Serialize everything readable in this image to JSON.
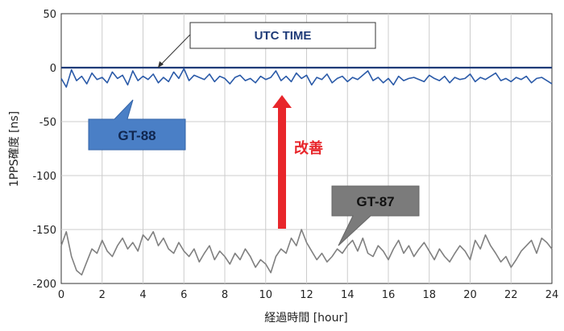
{
  "chart_data": {
    "type": "line",
    "xlabel": "経過時間 [hour]",
    "ylabel": "1PPS確度 [ns]",
    "xlim": [
      0,
      24
    ],
    "ylim": [
      -200,
      50
    ],
    "x_ticks": [
      0,
      2,
      4,
      6,
      8,
      10,
      12,
      14,
      16,
      18,
      20,
      22,
      24
    ],
    "y_ticks": [
      50,
      0,
      -50,
      -100,
      -150,
      -200
    ],
    "grid": true,
    "series": [
      {
        "name": "UTC TIME",
        "color": "#1f3b78",
        "x": [
          0,
          24
        ],
        "y": [
          0,
          0
        ]
      },
      {
        "name": "GT-88",
        "color": "#2a5aa8",
        "x": [
          0,
          0.25,
          0.5,
          0.75,
          1,
          1.25,
          1.5,
          1.75,
          2,
          2.25,
          2.5,
          2.75,
          3,
          3.25,
          3.5,
          3.75,
          4,
          4.25,
          4.5,
          4.75,
          5,
          5.25,
          5.5,
          5.75,
          6,
          6.25,
          6.5,
          6.75,
          7,
          7.25,
          7.5,
          7.75,
          8,
          8.25,
          8.5,
          8.75,
          9,
          9.25,
          9.5,
          9.75,
          10,
          10.25,
          10.5,
          10.75,
          11,
          11.25,
          11.5,
          11.75,
          12,
          12.25,
          12.5,
          12.75,
          13,
          13.25,
          13.5,
          13.75,
          14,
          14.25,
          14.5,
          14.75,
          15,
          15.25,
          15.5,
          15.75,
          16,
          16.25,
          16.5,
          16.75,
          17,
          17.25,
          17.5,
          17.75,
          18,
          18.25,
          18.5,
          18.75,
          19,
          19.25,
          19.5,
          19.75,
          20,
          20.25,
          20.5,
          20.75,
          21,
          21.25,
          21.5,
          21.75,
          22,
          22.25,
          22.5,
          22.75,
          23,
          23.25,
          23.5,
          23.75,
          24
        ],
        "y": [
          -10,
          -18,
          -2,
          -12,
          -8,
          -15,
          -5,
          -11,
          -9,
          -14,
          -4,
          -10,
          -7,
          -16,
          -3,
          -12,
          -8,
          -11,
          -6,
          -14,
          -9,
          -13,
          -4,
          -10,
          -1,
          -12,
          -7,
          -9,
          -11,
          -6,
          -13,
          -8,
          -10,
          -15,
          -9,
          -7,
          -12,
          -10,
          -14,
          -8,
          -11,
          -9,
          -3,
          -12,
          -8,
          -13,
          -5,
          -10,
          -7,
          -16,
          -9,
          -11,
          -6,
          -14,
          -10,
          -8,
          -13,
          -9,
          -11,
          -7,
          -3,
          -12,
          -9,
          -14,
          -10,
          -16,
          -8,
          -12,
          -10,
          -9,
          -11,
          -13,
          -7,
          -10,
          -12,
          -8,
          -14,
          -9,
          -11,
          -10,
          -6,
          -13,
          -9,
          -11,
          -8,
          -5,
          -12,
          -10,
          -13,
          -9,
          -11,
          -8,
          -14,
          -10,
          -9,
          -12,
          -15
        ]
      },
      {
        "name": "GT-87",
        "color": "#808080",
        "x": [
          0,
          0.25,
          0.5,
          0.75,
          1,
          1.25,
          1.5,
          1.75,
          2,
          2.25,
          2.5,
          2.75,
          3,
          3.25,
          3.5,
          3.75,
          4,
          4.25,
          4.5,
          4.75,
          5,
          5.25,
          5.5,
          5.75,
          6,
          6.25,
          6.5,
          6.75,
          7,
          7.25,
          7.5,
          7.75,
          8,
          8.25,
          8.5,
          8.75,
          9,
          9.25,
          9.5,
          9.75,
          10,
          10.25,
          10.5,
          10.75,
          11,
          11.25,
          11.5,
          11.75,
          12,
          12.25,
          12.5,
          12.75,
          13,
          13.25,
          13.5,
          13.75,
          14,
          14.25,
          14.5,
          14.75,
          15,
          15.25,
          15.5,
          15.75,
          16,
          16.25,
          16.5,
          16.75,
          17,
          17.25,
          17.5,
          17.75,
          18,
          18.25,
          18.5,
          18.75,
          19,
          19.25,
          19.5,
          19.75,
          20,
          20.25,
          20.5,
          20.75,
          21,
          21.25,
          21.5,
          21.75,
          22,
          22.25,
          22.5,
          22.75,
          23,
          23.25,
          23.5,
          23.75,
          24
        ],
        "y": [
          -165,
          -152,
          -175,
          -188,
          -192,
          -180,
          -168,
          -172,
          -160,
          -170,
          -175,
          -165,
          -158,
          -168,
          -162,
          -170,
          -155,
          -160,
          -152,
          -165,
          -158,
          -168,
          -172,
          -162,
          -170,
          -175,
          -168,
          -180,
          -172,
          -165,
          -178,
          -170,
          -175,
          -182,
          -172,
          -178,
          -168,
          -175,
          -185,
          -178,
          -182,
          -190,
          -175,
          -168,
          -172,
          -158,
          -165,
          -150,
          -162,
          -170,
          -178,
          -172,
          -180,
          -175,
          -168,
          -172,
          -165,
          -160,
          -170,
          -158,
          -172,
          -175,
          -165,
          -170,
          -178,
          -168,
          -160,
          -172,
          -165,
          -175,
          -168,
          -162,
          -170,
          -178,
          -168,
          -175,
          -180,
          -172,
          -165,
          -170,
          -178,
          -160,
          -168,
          -155,
          -165,
          -172,
          -180,
          -175,
          -185,
          -178,
          -170,
          -165,
          -160,
          -172,
          -158,
          -162,
          -168
        ]
      }
    ],
    "annotations": {
      "utc": "UTC TIME",
      "gt88": "GT-88",
      "gt87": "GT-87",
      "improve": "改善"
    }
  },
  "colors": {
    "gt88_box": "#4a7fc6",
    "gt87_box": "#7b7b7b",
    "arrow": "#e8262b",
    "grid": "#cccccc"
  }
}
